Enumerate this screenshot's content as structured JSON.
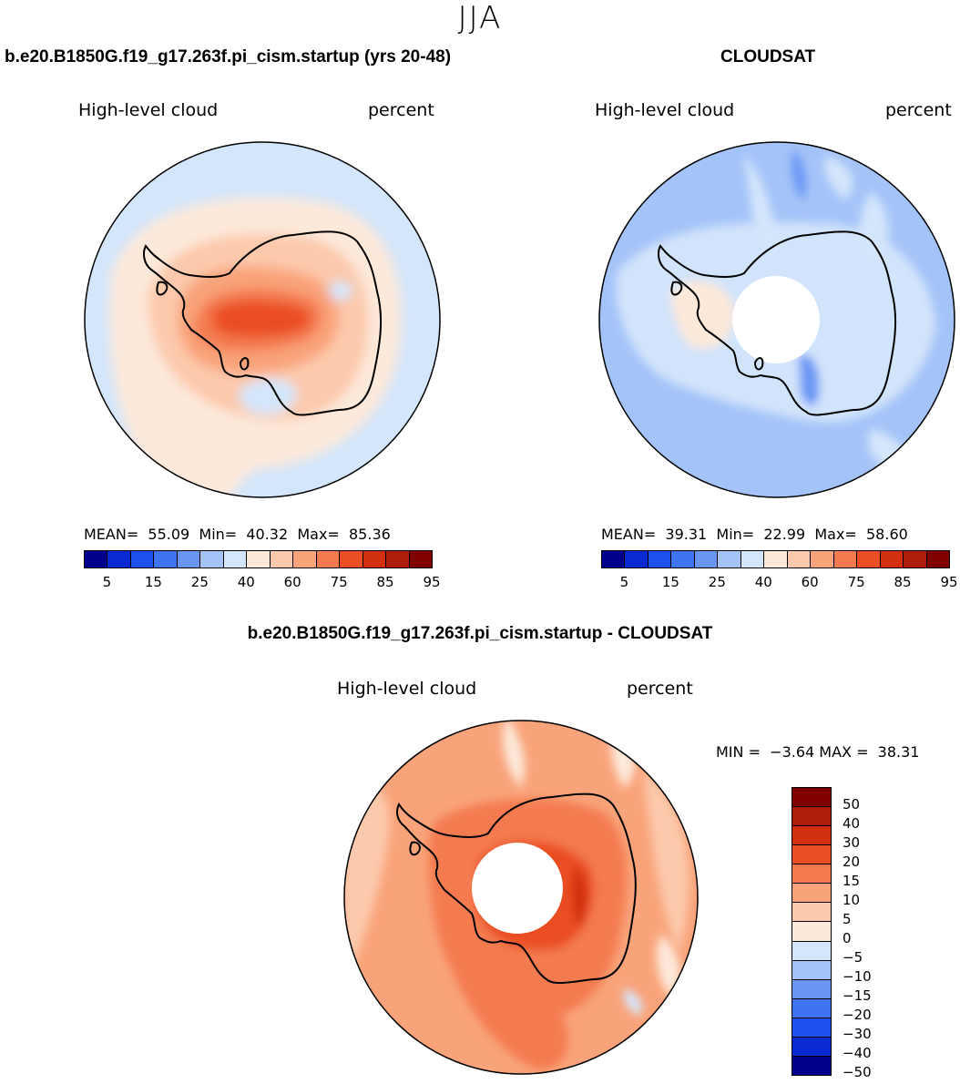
{
  "title": "JJA",
  "palette_seq": [
    "#00008c",
    "#0a2ad1",
    "#1e50ee",
    "#3e73f2",
    "#6996f5",
    "#a4c3f8",
    "#d4e6fb",
    "#fde9da",
    "#fcc9ac",
    "#f9a37a",
    "#f47a4f",
    "#ea4e23",
    "#d22f10",
    "#ae1c0a",
    "#800000"
  ],
  "palette_div": [
    "#800000",
    "#ae1c0a",
    "#d22f10",
    "#ea4e23",
    "#f47a4f",
    "#f9a37a",
    "#fcc9ac",
    "#fde9da",
    "#d4e6fb",
    "#a4c3f8",
    "#6996f5",
    "#3e73f2",
    "#1e50ee",
    "#0a2ad1",
    "#00008c"
  ],
  "panels": {
    "model": {
      "title": "b.e20.B1850G.f19_g17.263f.pi_cism.startup (yrs 20-48)",
      "variable": "High-level cloud",
      "units": "percent",
      "mean_label": "MEAN=",
      "mean": "55.09",
      "min_label": "Min=",
      "min": "40.32",
      "max_label": "Max=",
      "max": "85.36"
    },
    "obs": {
      "title": "CLOUDSAT",
      "variable": "High-level cloud",
      "units": "percent",
      "mean_label": "MEAN=",
      "mean": "39.31",
      "min_label": "Min=",
      "min": "22.99",
      "max_label": "Max=",
      "max": "58.60"
    },
    "diff": {
      "title": "b.e20.B1850G.f19_g17.263f.pi_cism.startup - CLOUDSAT",
      "variable": "High-level cloud",
      "units": "percent",
      "minmax_text": "MIN =  −3.64 MAX =  38.31"
    }
  },
  "chart_data": [
    {
      "type": "heatmap",
      "projection": "south-polar-stereographic",
      "title": "b.e20.B1850G.f19_g17.263f.pi_cism.startup (yrs 20-48)",
      "variable": "High-level cloud",
      "units": "percent",
      "stats": {
        "mean": 55.09,
        "min": 40.32,
        "max": 85.36
      },
      "colorbar_levels": [
        5,
        10,
        15,
        20,
        25,
        30,
        40,
        50,
        60,
        70,
        75,
        80,
        85,
        90,
        95
      ],
      "colorbar_tick_labels": [
        "5",
        "15",
        "25",
        "40",
        "60",
        "75",
        "85",
        "95"
      ]
    },
    {
      "type": "heatmap",
      "projection": "south-polar-stereographic",
      "title": "CLOUDSAT",
      "variable": "High-level cloud",
      "units": "percent",
      "stats": {
        "mean": 39.31,
        "min": 22.99,
        "max": 58.6
      },
      "colorbar_levels": [
        5,
        10,
        15,
        20,
        25,
        30,
        40,
        50,
        60,
        70,
        75,
        80,
        85,
        90,
        95
      ],
      "colorbar_tick_labels": [
        "5",
        "15",
        "25",
        "40",
        "60",
        "75",
        "85",
        "95"
      ]
    },
    {
      "type": "heatmap",
      "projection": "south-polar-stereographic",
      "title": "b.e20.B1850G.f19_g17.263f.pi_cism.startup - CLOUDSAT",
      "variable": "High-level cloud",
      "units": "percent",
      "stats": {
        "min": -3.64,
        "max": 38.31
      },
      "colorbar_levels": [
        50,
        40,
        30,
        20,
        15,
        10,
        5,
        0,
        -5,
        -10,
        -15,
        -20,
        -30,
        -40,
        -50
      ],
      "colorbar_tick_labels": [
        "50",
        "40",
        "30",
        "20",
        "15",
        "10",
        "5",
        "0",
        "−5",
        "−10",
        "−15",
        "−20",
        "−30",
        "−40",
        "−50"
      ]
    }
  ]
}
